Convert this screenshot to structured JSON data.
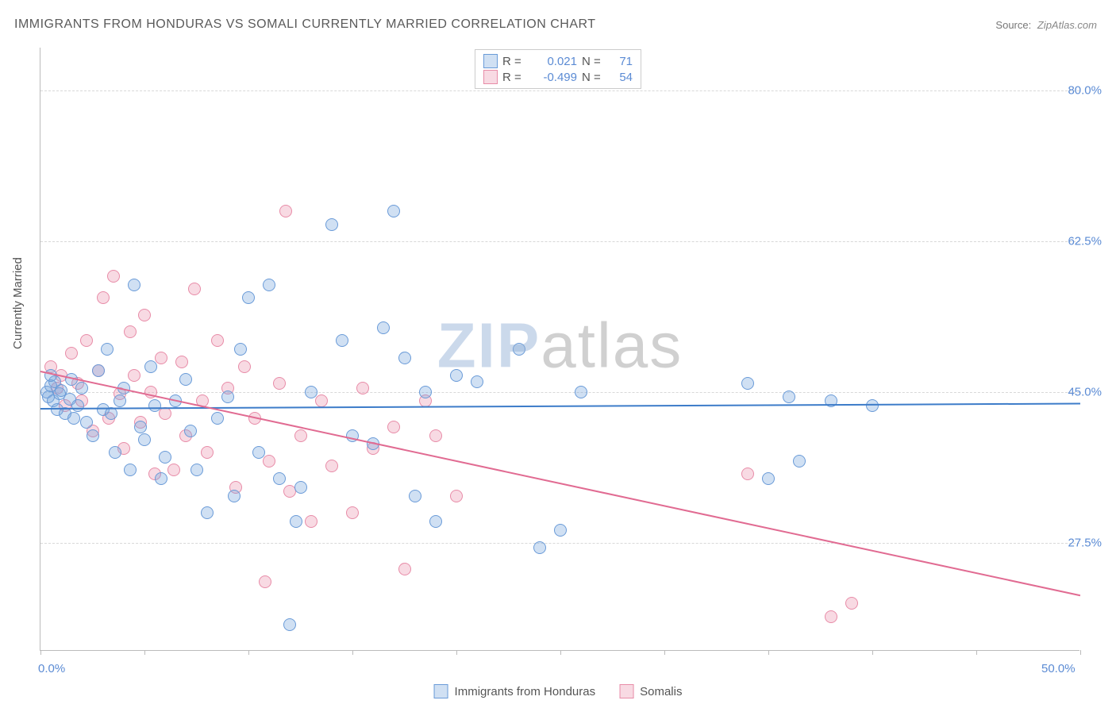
{
  "chart": {
    "type": "scatter",
    "title": "IMMIGRANTS FROM HONDURAS VS SOMALI CURRENTLY MARRIED CORRELATION CHART",
    "source_label": "Source:",
    "source_value": "ZipAtlas.com",
    "ylabel": "Currently Married",
    "xlim": [
      0,
      50
    ],
    "ylim": [
      15,
      85
    ],
    "xtick_positions": [
      0,
      5,
      10,
      15,
      20,
      25,
      30,
      35,
      40,
      45,
      50
    ],
    "xtick_labels": {
      "0": "0.0%",
      "50": "50.0%"
    },
    "ytick_positions": [
      27.5,
      45.0,
      62.5,
      80.0
    ],
    "ytick_labels": [
      "27.5%",
      "45.0%",
      "62.5%",
      "80.0%"
    ],
    "grid_color": "#d8d8d8",
    "axis_color": "#bbbbbb",
    "background_color": "#ffffff",
    "marker_radius": 8,
    "marker_stroke_width": 1.5,
    "label_fontsize": 15,
    "title_fontsize": 16,
    "series": [
      {
        "name": "Immigrants from Honduras",
        "fill_color": "rgba(120,165,220,0.35)",
        "stroke_color": "#6a9bd8",
        "line_color": "#3d7cc9",
        "R": "0.021",
        "N": "71",
        "trend": {
          "x1": 0,
          "y1": 43.2,
          "x2": 50,
          "y2": 43.8
        },
        "points": [
          [
            0.3,
            45
          ],
          [
            0.4,
            44.5
          ],
          [
            0.5,
            45.8
          ],
          [
            0.6,
            44
          ],
          [
            0.7,
            46.2
          ],
          [
            0.8,
            43
          ],
          [
            0.9,
            44.8
          ],
          [
            1,
            45.2
          ],
          [
            0.5,
            47
          ],
          [
            1.2,
            42.5
          ],
          [
            1.4,
            44.2
          ],
          [
            1.5,
            46.5
          ],
          [
            1.6,
            42
          ],
          [
            1.8,
            43.5
          ],
          [
            2,
            45.5
          ],
          [
            2.2,
            41.5
          ],
          [
            2.5,
            40
          ],
          [
            2.8,
            47.5
          ],
          [
            3,
            43
          ],
          [
            3.2,
            50
          ],
          [
            3.4,
            42.5
          ],
          [
            3.6,
            38
          ],
          [
            3.8,
            44
          ],
          [
            4,
            45.5
          ],
          [
            4.3,
            36
          ],
          [
            4.5,
            57.5
          ],
          [
            4.8,
            41
          ],
          [
            5,
            39.5
          ],
          [
            5.3,
            48
          ],
          [
            5.5,
            43.5
          ],
          [
            5.8,
            35
          ],
          [
            6,
            37.5
          ],
          [
            6.5,
            44
          ],
          [
            7,
            46.5
          ],
          [
            7.2,
            40.5
          ],
          [
            7.5,
            36
          ],
          [
            8,
            31
          ],
          [
            8.5,
            42
          ],
          [
            9,
            44.5
          ],
          [
            9.3,
            33
          ],
          [
            9.6,
            50
          ],
          [
            10,
            56
          ],
          [
            10.5,
            38
          ],
          [
            11,
            57.5
          ],
          [
            11.5,
            35
          ],
          [
            12,
            18
          ],
          [
            12.3,
            30
          ],
          [
            12.5,
            34
          ],
          [
            13,
            45
          ],
          [
            14,
            64.5
          ],
          [
            14.5,
            51
          ],
          [
            15,
            40
          ],
          [
            16,
            39
          ],
          [
            16.5,
            52.5
          ],
          [
            17,
            66
          ],
          [
            17.5,
            49
          ],
          [
            18,
            33
          ],
          [
            18.5,
            45
          ],
          [
            19,
            30
          ],
          [
            20,
            47
          ],
          [
            21,
            46.2
          ],
          [
            23,
            50
          ],
          [
            24,
            27
          ],
          [
            25,
            29
          ],
          [
            26,
            45
          ],
          [
            34,
            46
          ],
          [
            35,
            35
          ],
          [
            36,
            44.5
          ],
          [
            36.5,
            37
          ],
          [
            38,
            44
          ],
          [
            40,
            43.5
          ]
        ]
      },
      {
        "name": "Somalis",
        "fill_color": "rgba(235,150,175,0.35)",
        "stroke_color": "#e88ca8",
        "line_color": "#e16b92",
        "R": "-0.499",
        "N": "54",
        "trend": {
          "x1": 0,
          "y1": 47.5,
          "x2": 50,
          "y2": 21.5
        },
        "points": [
          [
            0.5,
            48
          ],
          [
            0.8,
            45.5
          ],
          [
            1,
            47
          ],
          [
            1.2,
            43.5
          ],
          [
            1.5,
            49.5
          ],
          [
            1.8,
            46
          ],
          [
            2,
            44
          ],
          [
            2.2,
            51
          ],
          [
            2.5,
            40.5
          ],
          [
            2.8,
            47.5
          ],
          [
            3,
            56
          ],
          [
            3.3,
            42
          ],
          [
            3.5,
            58.5
          ],
          [
            3.8,
            44.8
          ],
          [
            4,
            38.5
          ],
          [
            4.3,
            52
          ],
          [
            4.5,
            47
          ],
          [
            4.8,
            41.5
          ],
          [
            5,
            54
          ],
          [
            5.3,
            45
          ],
          [
            5.5,
            35.5
          ],
          [
            5.8,
            49
          ],
          [
            6,
            42.5
          ],
          [
            6.4,
            36
          ],
          [
            6.8,
            48.5
          ],
          [
            7,
            40
          ],
          [
            7.4,
            57
          ],
          [
            7.8,
            44
          ],
          [
            8,
            38
          ],
          [
            8.5,
            51
          ],
          [
            9,
            45.5
          ],
          [
            9.4,
            34
          ],
          [
            9.8,
            48
          ],
          [
            10.3,
            42
          ],
          [
            10.8,
            23
          ],
          [
            11,
            37
          ],
          [
            11.5,
            46
          ],
          [
            11.8,
            66
          ],
          [
            12,
            33.5
          ],
          [
            12.5,
            40
          ],
          [
            13,
            30
          ],
          [
            13.5,
            44
          ],
          [
            14,
            36.5
          ],
          [
            15,
            31
          ],
          [
            15.5,
            45.5
          ],
          [
            16,
            38.5
          ],
          [
            17,
            41
          ],
          [
            17.5,
            24.5
          ],
          [
            18.5,
            44
          ],
          [
            19,
            40
          ],
          [
            20,
            33
          ],
          [
            34,
            35.5
          ],
          [
            38,
            19
          ],
          [
            39,
            20.5
          ]
        ]
      }
    ],
    "legend_bottom": [
      {
        "label": "Immigrants from Honduras",
        "fill": "rgba(120,165,220,0.35)",
        "stroke": "#6a9bd8"
      },
      {
        "label": "Somalis",
        "fill": "rgba(235,150,175,0.35)",
        "stroke": "#e88ca8"
      }
    ],
    "watermark": {
      "part1": "ZIP",
      "part2": "atlas"
    }
  }
}
